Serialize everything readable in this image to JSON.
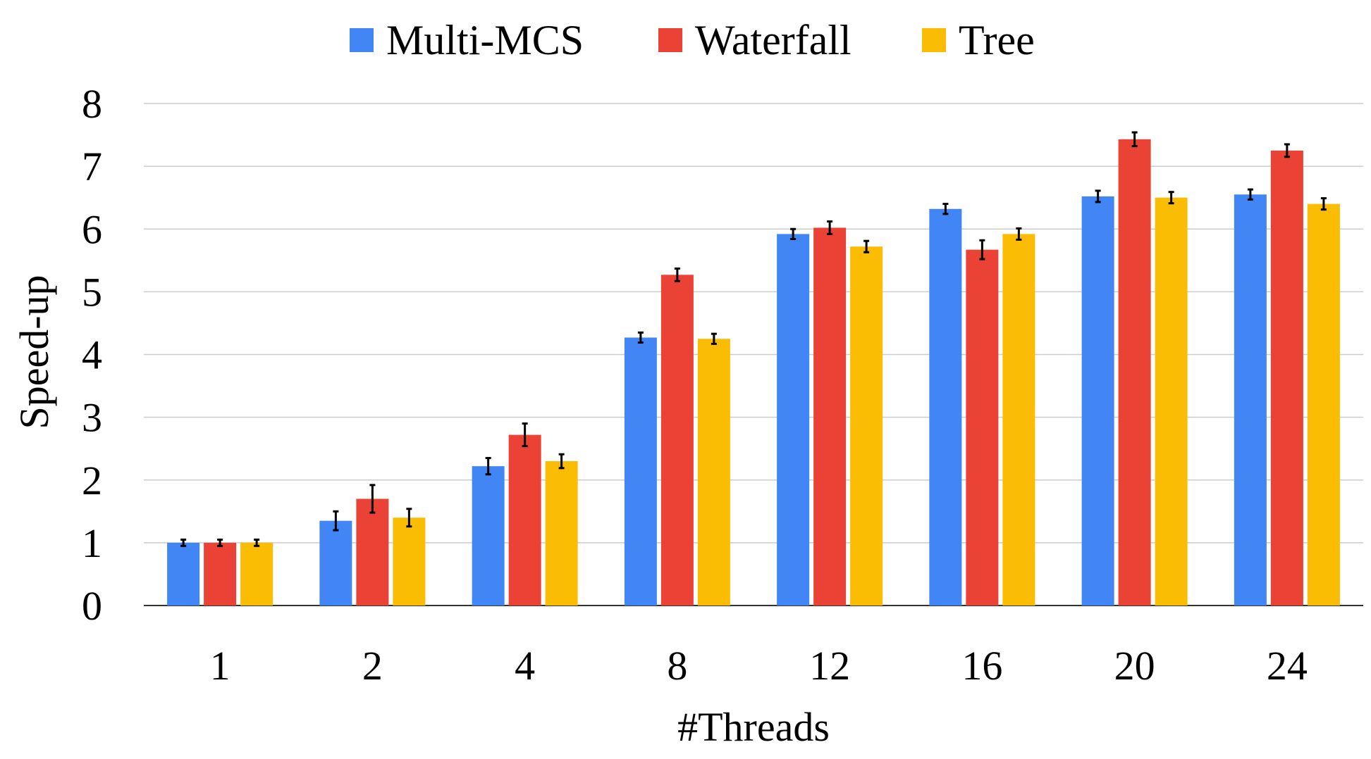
{
  "chart_data": {
    "type": "bar",
    "title": "",
    "xlabel": "#Threads",
    "ylabel": "Speed-up",
    "ylim": [
      0,
      8
    ],
    "yticks": [
      0,
      1,
      2,
      3,
      4,
      5,
      6,
      7,
      8
    ],
    "grid": true,
    "legend_position": "top",
    "categories": [
      "1",
      "2",
      "4",
      "8",
      "12",
      "16",
      "20",
      "24"
    ],
    "series": [
      {
        "name": "Multi-MCS",
        "color": "#4285F4",
        "values": [
          1.0,
          1.35,
          2.22,
          4.27,
          5.92,
          6.32,
          6.52,
          6.55
        ],
        "errors": [
          0.05,
          0.15,
          0.13,
          0.08,
          0.08,
          0.08,
          0.09,
          0.08
        ]
      },
      {
        "name": "Waterfall",
        "color": "#EA4335",
        "values": [
          1.0,
          1.7,
          2.72,
          5.27,
          6.02,
          5.67,
          7.43,
          7.25
        ],
        "errors": [
          0.05,
          0.22,
          0.18,
          0.1,
          0.1,
          0.15,
          0.11,
          0.1
        ]
      },
      {
        "name": "Tree",
        "color": "#FBBC04",
        "values": [
          1.0,
          1.4,
          2.3,
          4.25,
          5.72,
          5.92,
          6.5,
          6.4
        ],
        "errors": [
          0.05,
          0.14,
          0.11,
          0.08,
          0.09,
          0.09,
          0.09,
          0.09
        ]
      }
    ]
  }
}
